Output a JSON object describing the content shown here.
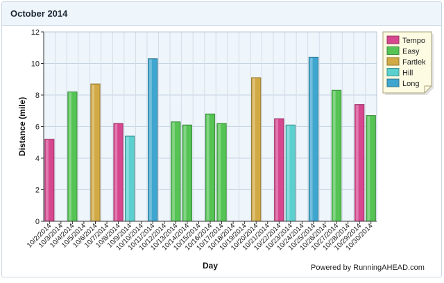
{
  "panel": {
    "title": "October 2014"
  },
  "footer": {
    "credit": "Powered by RunningAHEAD.com"
  },
  "colors": {
    "Tempo": "#d6478f",
    "Easy": "#55c455",
    "Fartlek": "#d2aa45",
    "Hill": "#5ccfcf",
    "Long": "#3fa6cf",
    "plot_bg": "#eef5fb",
    "legend_bg": "#fdfbe2"
  },
  "chart_data": {
    "type": "bar",
    "xlabel": "Day",
    "ylabel": "Distance (mile)",
    "ylim": [
      0,
      12
    ],
    "yticks": [
      0,
      2,
      4,
      6,
      8,
      10,
      12
    ],
    "grid": true,
    "legend_position": "top-right",
    "categories": [
      "10/2/2014",
      "10/3/2014",
      "10/4/2014",
      "10/5/2014",
      "10/6/2014",
      "10/7/2014",
      "10/8/2014",
      "10/9/2014",
      "10/10/2014",
      "10/11/2014",
      "10/12/2014",
      "10/13/2014",
      "10/14/2014",
      "10/15/2014",
      "10/16/2014",
      "10/17/2014",
      "10/18/2014",
      "10/19/2014",
      "10/20/2014",
      "10/21/2014",
      "10/22/2014",
      "10/23/2014",
      "10/24/2014",
      "10/25/2014",
      "10/26/2014",
      "10/27/2014",
      "10/28/2014",
      "10/29/2014",
      "10/30/2014"
    ],
    "series": [
      {
        "name": "Tempo",
        "values": [
          5.2,
          null,
          null,
          null,
          null,
          null,
          6.2,
          null,
          null,
          null,
          null,
          null,
          null,
          null,
          null,
          null,
          null,
          null,
          null,
          null,
          6.5,
          null,
          null,
          null,
          null,
          null,
          null,
          7.4,
          null
        ]
      },
      {
        "name": "Easy",
        "values": [
          null,
          null,
          8.2,
          null,
          null,
          null,
          null,
          null,
          null,
          null,
          null,
          6.3,
          6.1,
          null,
          6.8,
          6.2,
          null,
          null,
          null,
          null,
          null,
          null,
          null,
          null,
          null,
          8.3,
          null,
          null,
          6.7
        ]
      },
      {
        "name": "Fartlek",
        "values": [
          null,
          null,
          null,
          null,
          8.7,
          null,
          null,
          null,
          null,
          null,
          null,
          null,
          null,
          null,
          null,
          null,
          null,
          null,
          9.1,
          null,
          null,
          null,
          null,
          null,
          null,
          null,
          null,
          null,
          null
        ]
      },
      {
        "name": "Hill",
        "values": [
          null,
          null,
          null,
          null,
          null,
          null,
          null,
          5.4,
          null,
          null,
          null,
          null,
          null,
          null,
          null,
          null,
          null,
          null,
          null,
          null,
          null,
          6.1,
          null,
          null,
          null,
          null,
          null,
          null,
          null
        ]
      },
      {
        "name": "Long",
        "values": [
          null,
          null,
          null,
          null,
          null,
          null,
          null,
          null,
          null,
          10.3,
          null,
          null,
          null,
          null,
          null,
          null,
          null,
          null,
          null,
          null,
          null,
          null,
          null,
          10.4,
          null,
          null,
          null,
          null,
          null
        ]
      }
    ]
  }
}
